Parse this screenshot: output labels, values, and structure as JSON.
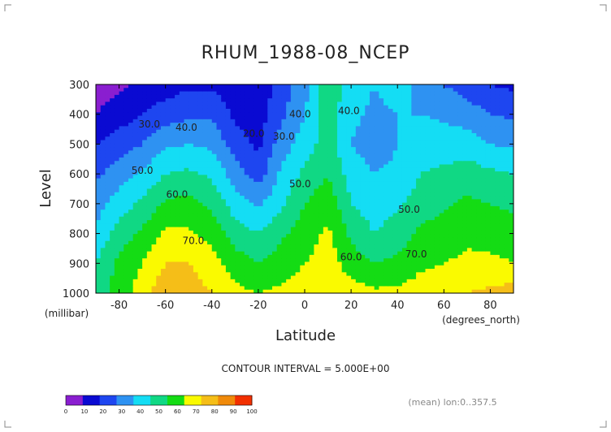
{
  "chart_data": {
    "type": "contour",
    "title": "RHUM_1988-08_NCEP",
    "xlabel": "Latitude",
    "x_units": "(degrees_north)",
    "ylabel": "Level",
    "y_units": "(millibar)",
    "x_ticks": [
      -80,
      -60,
      -40,
      -20,
      0,
      20,
      40,
      60,
      80
    ],
    "x_tick_labels": [
      "-80",
      "-60",
      "-40",
      "-20",
      "0",
      "20",
      "40",
      "60",
      "80"
    ],
    "y_ticks": [
      300,
      400,
      500,
      600,
      700,
      800,
      900,
      1000
    ],
    "y_tick_labels": [
      "300",
      "400",
      "500",
      "600",
      "700",
      "800",
      "900",
      "1000"
    ],
    "xlim": [
      -90,
      90
    ],
    "ylim": [
      1000,
      300
    ],
    "contour_interval_text": "CONTOUR INTERVAL = 5.000E+00",
    "mean_text": "(mean) lon:0..357.5",
    "colorbar": {
      "ticks": [
        0,
        10,
        20,
        30,
        40,
        50,
        60,
        70,
        80,
        90,
        100
      ],
      "tick_labels": [
        "0",
        "10",
        "20",
        "30",
        "40",
        "50",
        "60",
        "70",
        "80",
        "90",
        "100"
      ],
      "colors": [
        "#8a1ed0",
        "#0a0ad2",
        "#1e46f0",
        "#2e92f2",
        "#14ddf4",
        "#10d884",
        "#14dc14",
        "#fafa00",
        "#f5be18",
        "#f08a0a",
        "#f23000"
      ]
    },
    "contour_labels": [
      {
        "text": "30.0",
        "lat": -67,
        "level": 445
      },
      {
        "text": "40.0",
        "lat": -51,
        "level": 455
      },
      {
        "text": "50.0",
        "lat": -70,
        "level": 600
      },
      {
        "text": "60.0",
        "lat": -55,
        "level": 680
      },
      {
        "text": "70.0",
        "lat": -48,
        "level": 835
      },
      {
        "text": "20.0",
        "lat": -22,
        "level": 475
      },
      {
        "text": "30.0",
        "lat": -9,
        "level": 485
      },
      {
        "text": "40.0",
        "lat": -2,
        "level": 410
      },
      {
        "text": "40.0",
        "lat": 19,
        "level": 400
      },
      {
        "text": "50.0",
        "lat": -2,
        "level": 645
      },
      {
        "text": "50.0",
        "lat": 45,
        "level": 730
      },
      {
        "text": "60.0",
        "lat": 20,
        "level": 890
      },
      {
        "text": "70.0",
        "lat": 48,
        "level": 880
      }
    ],
    "masked_region_note": "",
    "fields": [
      {
        "lat": -90,
        "values": [
          5,
          10,
          20,
          28,
          35,
          42,
          50,
          55
        ]
      },
      {
        "lat": -80,
        "values": [
          8,
          15,
          25,
          35,
          45,
          55,
          62,
          65
        ]
      },
      {
        "lat": -70,
        "values": [
          12,
          20,
          30,
          42,
          52,
          62,
          70,
          75
        ]
      },
      {
        "lat": -60,
        "values": [
          15,
          25,
          38,
          50,
          62,
          72,
          80,
          88
        ]
      },
      {
        "lat": -50,
        "values": [
          18,
          28,
          40,
          52,
          63,
          72,
          80,
          85
        ]
      },
      {
        "lat": -40,
        "values": [
          18,
          28,
          38,
          48,
          58,
          66,
          74,
          80
        ]
      },
      {
        "lat": -30,
        "values": [
          15,
          18,
          25,
          35,
          45,
          55,
          65,
          73
        ]
      },
      {
        "lat": -20,
        "values": [
          12,
          15,
          18,
          25,
          38,
          50,
          60,
          70
        ]
      },
      {
        "lat": -10,
        "values": [
          25,
          28,
          35,
          42,
          48,
          58,
          65,
          72
        ]
      },
      {
        "lat": 0,
        "values": [
          35,
          40,
          45,
          52,
          60,
          65,
          70,
          75
        ]
      },
      {
        "lat": 10,
        "values": [
          60,
          55,
          55,
          60,
          67,
          72,
          75,
          78
        ]
      },
      {
        "lat": 20,
        "values": [
          45,
          42,
          40,
          45,
          50,
          58,
          65,
          75
        ]
      },
      {
        "lat": 30,
        "values": [
          40,
          38,
          35,
          40,
          45,
          50,
          60,
          72
        ]
      },
      {
        "lat": 40,
        "values": [
          45,
          40,
          40,
          42,
          48,
          55,
          62,
          72
        ]
      },
      {
        "lat": 50,
        "values": [
          35,
          40,
          45,
          50,
          55,
          62,
          68,
          75
        ]
      },
      {
        "lat": 60,
        "values": [
          30,
          38,
          45,
          52,
          58,
          65,
          70,
          78
        ]
      },
      {
        "lat": 70,
        "values": [
          25,
          35,
          45,
          55,
          62,
          68,
          72,
          80
        ]
      },
      {
        "lat": 80,
        "values": [
          20,
          30,
          40,
          52,
          60,
          66,
          72,
          82
        ]
      },
      {
        "lat": 90,
        "values": [
          18,
          28,
          38,
          50,
          58,
          65,
          70,
          85
        ]
      }
    ]
  }
}
